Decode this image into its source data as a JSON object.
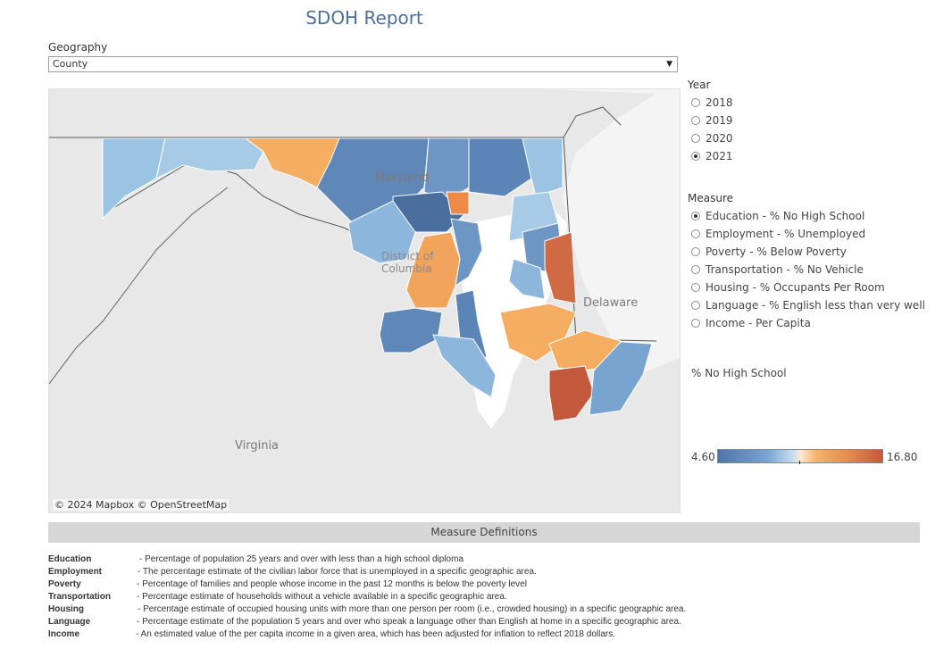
{
  "title": "SDOH Report",
  "geography": {
    "label": "Geography",
    "selected": "County"
  },
  "map": {
    "attribution": "© 2024 Mapbox  © OpenStreetMap",
    "labels": {
      "maryland": "Maryland",
      "dc": "District of Columbia",
      "delaware": "Delaware",
      "virginia": "Virginia"
    }
  },
  "year": {
    "label": "Year",
    "options": [
      "2018",
      "2019",
      "2020",
      "2021"
    ],
    "selected": "2021"
  },
  "measure": {
    "label": "Measure",
    "options": [
      "Education - % No High School",
      "Employment - % Unemployed",
      "Poverty - % Below Poverty",
      "Transportation - % No Vehicle",
      "Housing - % Occupants Per Room",
      "Language - % English less than very well",
      "Income - Per Capita"
    ],
    "selected": "Education - % No High School"
  },
  "legend": {
    "title": "% No High School",
    "min": "4.60",
    "max": "16.80"
  },
  "colors": {
    "low": "#4e76a8",
    "mid": "#f9ecd8",
    "high": "#c4583d"
  },
  "definitions": {
    "header": "Measure Definitions",
    "items": [
      {
        "term": "Education",
        "text": "- Percentage of population 25 years and over with less than a high school diploma"
      },
      {
        "term": "Employment",
        "text": "- The percentage estimate of the civilian labor force that is unemployed in a specific geographic area."
      },
      {
        "term": "Poverty",
        "text": "- Percentage of families and people whose income in the past 12 months is below the poverty level"
      },
      {
        "term": "Transportation",
        "text": "- Percentage estimate of households without a vehicle available in a specific geographic area."
      },
      {
        "term": "Housing",
        "text": "- Percentage estimate of occupied housing units with more than one person per room (i.e., crowded housing) in a specific geographic area."
      },
      {
        "term": "Language",
        "text": "- Percentage estimate of the population 5 years and over who speak a language other than English at home in a specific geographic area."
      },
      {
        "term": "Income",
        "text": "-  An estimated value of the per capita income in a given area, which has been adjusted for inflation to reflect 2018 dollars."
      }
    ]
  }
}
